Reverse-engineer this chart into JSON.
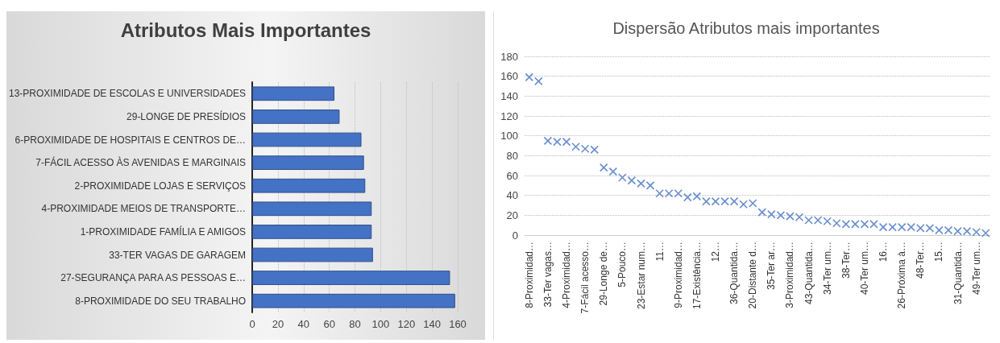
{
  "chart_data": [
    {
      "type": "bar",
      "title": "Atributos Mais Importantes",
      "orientation": "horizontal",
      "categories": [
        "13-PROXIMIDADE DE ESCOLAS E UNIVERSIDADES",
        "29-LONGE DE PRESÍDIOS",
        "6-PROXIMIDADE DE HOSPITAIS E CENTROS DE…",
        "7-FÁCIL ACESSO ÀS AVENIDAS E MARGINAIS",
        "2-PROXIMIDADE LOJAS E SERVIÇOS",
        "4-PROXIMIDADE MEIOS DE TRANSPORTE…",
        "1-PROXIMIDADE FAMÍLIA E AMIGOS",
        "33-TER VAGAS DE GARAGEM",
        "27-SEGURANÇA PARA AS PESSOAS E…",
        "8-PROXIMIDADE DO SEU TRABALHO"
      ],
      "values": [
        64,
        68,
        85,
        87,
        88,
        93,
        93,
        94,
        154,
        158
      ],
      "color": "#4472c4",
      "xlim": [
        0,
        160
      ],
      "xticks": [
        0,
        20,
        40,
        60,
        80,
        100,
        120,
        140,
        160
      ],
      "grid": "x"
    },
    {
      "type": "scatter",
      "title": "Dispersão Atributos mais importantes",
      "marker": "cross",
      "color": "#4472c4",
      "categories": [
        "8-Proximidad…",
        null,
        "33-Ter vagas…",
        null,
        "4-Proximidad…",
        null,
        "7-Fácil acesso…",
        null,
        "29-Longe de…",
        null,
        "5-Pouco…",
        null,
        "23-Estar num…",
        null,
        "11…",
        null,
        "9-Proximidad…",
        null,
        "17-Existência…",
        null,
        "12…",
        null,
        "36-Quantida…",
        null,
        "20-Distante d…",
        null,
        "35-Ter ar…",
        null,
        "3-Proximidad…",
        null,
        "43-Quantida…",
        null,
        "34-Ter um…",
        null,
        "38-Ter…",
        null,
        "40-Ter um…",
        null,
        "16…",
        null,
        "26-Próxima à…",
        null,
        "48-Ter…",
        null,
        "15…",
        null,
        "31-Quantida…",
        null,
        "49-Ter um…",
        null
      ],
      "values": [
        159,
        155,
        95,
        94,
        94,
        89,
        87,
        86,
        68,
        64,
        58,
        55,
        52,
        50,
        42,
        42,
        42,
        38,
        39,
        34,
        34,
        34,
        34,
        31,
        32,
        23,
        21,
        20,
        19,
        18,
        15,
        15,
        14,
        12,
        11,
        11,
        11,
        11,
        8,
        8,
        8,
        8,
        7,
        7,
        5,
        5,
        4,
        4,
        3,
        2
      ],
      "ylim": [
        0,
        180
      ],
      "yticks": [
        0,
        20,
        40,
        60,
        80,
        100,
        120,
        140,
        160,
        180
      ],
      "grid": "y"
    }
  ]
}
